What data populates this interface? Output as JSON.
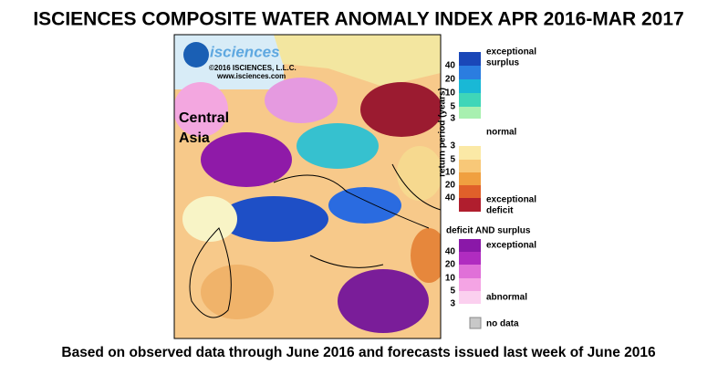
{
  "title": "ISCIENCES COMPOSITE WATER ANOMALY INDEX APR 2016-MAR 2017",
  "footer": "Based on observed data through June 2016 and forecasts issued last week of June 2016",
  "map": {
    "logo": "isciences",
    "copyright": "©2016  ISCIENCES, L.L.C.",
    "url": "www.isciences.com",
    "region_label": [
      "Central",
      "Asia"
    ]
  },
  "legend": {
    "axis_label": "return period (years)",
    "surplus_label": [
      "exceptional",
      "surplus"
    ],
    "surplus_ticks": [
      40,
      20,
      10,
      5,
      3
    ],
    "normal": "normal",
    "deficit_ticks": [
      3,
      5,
      10,
      20,
      40
    ],
    "deficit_label": [
      "exceptional",
      "deficit"
    ],
    "both_title": "deficit AND surplus",
    "both_top": "exceptional",
    "both_ticks": [
      40,
      20,
      10,
      5,
      3
    ],
    "both_bottom": "abnormal",
    "nodata": "no data"
  }
}
